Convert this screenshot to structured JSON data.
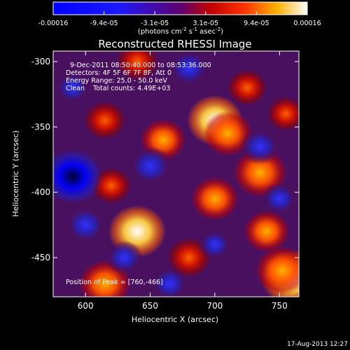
{
  "chart_data": {
    "type": "heatmap",
    "title": "Reconstructed RHESSI Image",
    "xlabel": "Heliocentric X (arcsec)",
    "ylabel": "Heliocentric Y (arcsec)",
    "xlim": [
      575,
      765
    ],
    "ylim": [
      -480,
      -292
    ],
    "x_ticks": [
      600,
      650,
      700,
      750
    ],
    "y_ticks": [
      -300,
      -350,
      -400,
      -450
    ],
    "colorbar": {
      "ticks": [
        "-0.00016",
        "-9.4e-05",
        "-3.1e-05",
        "3.1e-05",
        "9.4e-05",
        "0.00016"
      ],
      "unit_text": "(photons cm",
      "unit_exp1": "-2",
      "unit_mid": " s",
      "unit_exp2": "-1",
      "unit_mid2": " asec",
      "unit_exp3": "-2",
      "unit_end": ")",
      "range": [
        -0.00016,
        0.00016
      ]
    },
    "annotations": {
      "time": "9-Dec-2011 08:50:40.000 to 08:53:36.000",
      "detectors": "Detectors: 4F 5F 6F 7F 8F, Att 0",
      "energy": "Energy Range: 25.0 - 50.0 keV",
      "clean": "Clean    Total counts: 4.49E+03",
      "peak": "Position of Peak = [760,-466]"
    },
    "sources": [
      {
        "x": 760,
        "y": -466,
        "v": 1.0
      },
      {
        "x": 752,
        "y": -460,
        "v": 0.8
      },
      {
        "x": 700,
        "y": -345,
        "v": 0.85
      },
      {
        "x": 710,
        "y": -355,
        "v": 0.7
      },
      {
        "x": 735,
        "y": -385,
        "v": 0.8
      },
      {
        "x": 640,
        "y": -430,
        "v": 0.9
      },
      {
        "x": 615,
        "y": -470,
        "v": 0.75
      },
      {
        "x": 660,
        "y": -360,
        "v": 0.6
      },
      {
        "x": 700,
        "y": -405,
        "v": 0.65
      },
      {
        "x": 640,
        "y": -300,
        "v": 0.5
      },
      {
        "x": 740,
        "y": -430,
        "v": 0.6
      },
      {
        "x": 615,
        "y": -345,
        "v": 0.5
      },
      {
        "x": 680,
        "y": -450,
        "v": 0.55
      },
      {
        "x": 620,
        "y": -395,
        "v": 0.45
      },
      {
        "x": 725,
        "y": -320,
        "v": 0.45
      },
      {
        "x": 755,
        "y": -340,
        "v": 0.4
      },
      {
        "x": 590,
        "y": -388,
        "v": -0.95
      },
      {
        "x": 600,
        "y": -425,
        "v": -0.5
      },
      {
        "x": 650,
        "y": -380,
        "v": -0.55
      },
      {
        "x": 735,
        "y": -365,
        "v": -0.45
      },
      {
        "x": 680,
        "y": -305,
        "v": -0.5
      },
      {
        "x": 590,
        "y": -320,
        "v": -0.35
      },
      {
        "x": 665,
        "y": -470,
        "v": -0.4
      },
      {
        "x": 750,
        "y": -405,
        "v": -0.35
      },
      {
        "x": 630,
        "y": -450,
        "v": -0.4
      },
      {
        "x": 700,
        "y": -440,
        "v": -0.3
      }
    ]
  },
  "footer": {
    "date": "17-Aug-2013 12:27"
  }
}
